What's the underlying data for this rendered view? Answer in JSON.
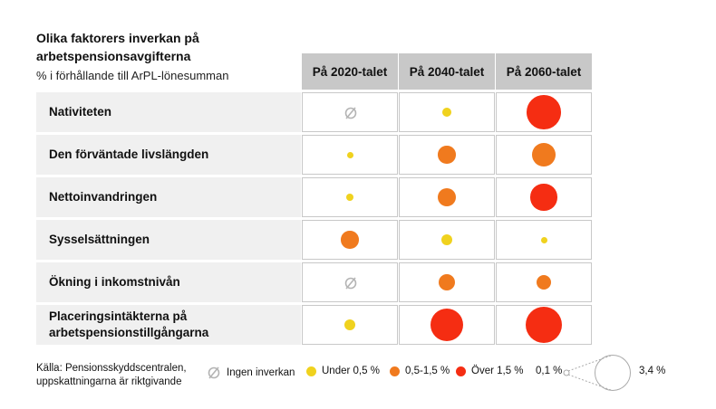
{
  "chart_data": {
    "type": "table",
    "title": "Olika faktorers inverkan på arbetspensionsavgifterna",
    "subtitle": "% i förhållande till ArPL-lönesumman",
    "columns": [
      "På 2020-talet",
      "På 2040-talet",
      "På 2060-talet"
    ],
    "rows": [
      {
        "label": "Nativiteten",
        "values": [
          0,
          0.2,
          3.0
        ],
        "categories": [
          "none",
          "under",
          "over"
        ]
      },
      {
        "label": "Den förväntade livslängden",
        "values": [
          0.1,
          0.8,
          1.4
        ],
        "categories": [
          "under",
          "mid",
          "mid"
        ]
      },
      {
        "label": "Nettoinvandringen",
        "values": [
          0.15,
          0.9,
          1.8
        ],
        "categories": [
          "under",
          "mid",
          "over"
        ]
      },
      {
        "label": "Sysselsättningen",
        "values": [
          0.8,
          0.3,
          0.1
        ],
        "categories": [
          "mid",
          "under",
          "under"
        ]
      },
      {
        "label": "Ökning i inkomstnivån",
        "values": [
          0,
          0.7,
          0.6
        ],
        "categories": [
          "none",
          "mid",
          "mid"
        ]
      },
      {
        "label": "Placeringsintäkterna på arbetspensionstillgångarna",
        "values": [
          0.35,
          2.9,
          3.4
        ],
        "categories": [
          "under",
          "over",
          "over"
        ]
      }
    ],
    "size_scale": {
      "min_value": 0.1,
      "max_value": 3.4,
      "min_label": "0,1 %",
      "max_label": "3,4 %"
    }
  },
  "colors": {
    "under": "#f0d21e",
    "mid": "#f07a1e",
    "over": "#f52d12",
    "none": "#b4b4b4"
  },
  "legend": {
    "none": "Ingen inverkan",
    "under": "Under 0,5 %",
    "mid": "0,5-1,5 %",
    "over": "Över 1,5 %"
  },
  "source": "Källa: Pensionsskyddscentralen, uppskattningarna är riktgivande"
}
